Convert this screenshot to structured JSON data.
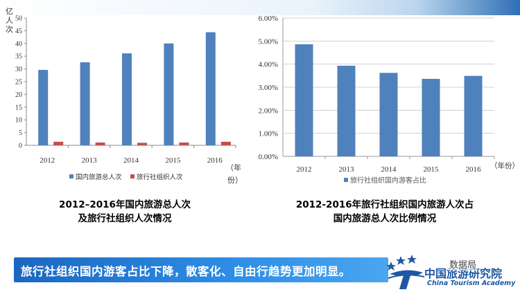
{
  "chart_data": [
    {
      "type": "bar",
      "ylabel": "亿人次",
      "xlabel": "（年份）",
      "categories": [
        "2012",
        "2013",
        "2014",
        "2015",
        "2016"
      ],
      "series": [
        {
          "name": "国内旅游总人次",
          "values": [
            29.6,
            32.6,
            36.1,
            40.0,
            44.4
          ],
          "color": "#4f81bd"
        },
        {
          "name": "旅行社组织人次",
          "values": [
            1.4,
            1.1,
            1.0,
            1.1,
            1.4
          ],
          "color": "#c0504d"
        }
      ],
      "ylim": [
        0,
        50
      ],
      "yticks": [
        "0",
        "5",
        "10",
        "15",
        "20",
        "25",
        "30",
        "35",
        "40",
        "45",
        "50"
      ],
      "grid": false,
      "legend_position": "bottom"
    },
    {
      "type": "bar",
      "xlabel": "（年份）",
      "categories": [
        "2012",
        "2013",
        "2014",
        "2015",
        "2016"
      ],
      "series": [
        {
          "name": "旅行社组织国内游客占比",
          "values": [
            4.86,
            3.93,
            3.62,
            3.36,
            3.49
          ],
          "color": "#4f81bd"
        }
      ],
      "ylim": [
        0,
        6
      ],
      "yticks": [
        "0.00%",
        "1.00%",
        "2.00%",
        "3.00%",
        "4.00%",
        "5.00%",
        "6.00%"
      ],
      "grid": true,
      "legend_position": "bottom"
    }
  ],
  "captions": {
    "left_line1": "2012–2016年国内旅游总人次",
    "left_line2": "及旅行社组织人次情况",
    "right_line1": "2012-2016年旅行社组织国内旅游人次占",
    "right_line2": "国内旅游总人次比例情况"
  },
  "banner": {
    "text": "旅行社组织国内游客占比下降，散客化、自由行趋势更加明显。"
  },
  "logo": {
    "cn_text": "中国旅游研究院",
    "en_text": "China Tourism Academy",
    "watermark": "数据局"
  },
  "colors": {
    "bar_blue": "#4f81bd",
    "bar_red": "#c0504d",
    "banner_blue": "#1b67c0",
    "brand_blue": "#1f57a3"
  }
}
